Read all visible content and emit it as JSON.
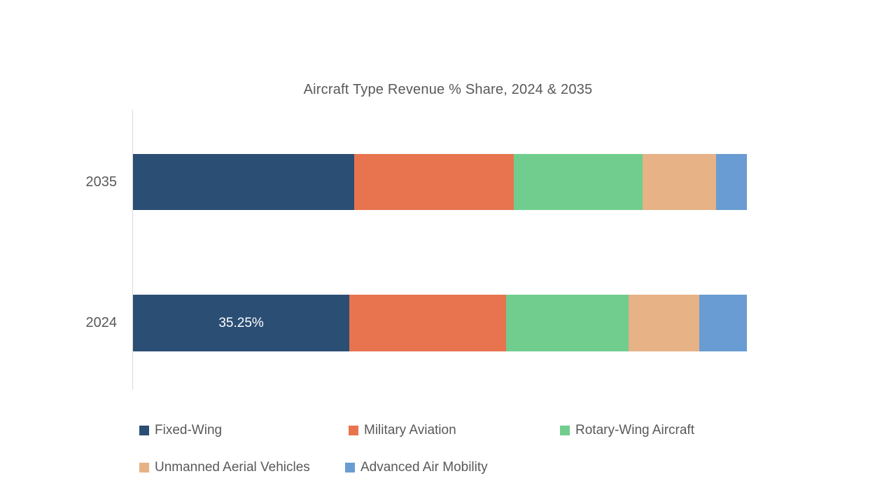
{
  "chart_data": {
    "type": "bar",
    "orientation": "horizontal",
    "stacked": true,
    "title": "Aircraft Type Revenue % Share, 2024 & 2035",
    "categories": [
      "2035",
      "2024"
    ],
    "series": [
      {
        "name": "Fixed-Wing",
        "color": "#2B4E74",
        "values": [
          36,
          35.25
        ]
      },
      {
        "name": "Military Aviation",
        "color": "#E7744E",
        "values": [
          26,
          25.5
        ]
      },
      {
        "name": "Rotary-Wing Aircraft",
        "color": "#70CD8E",
        "values": [
          21,
          20
        ]
      },
      {
        "name": "Unmanned Aerial Vehicles",
        "color": "#E6B286",
        "values": [
          12,
          11.5
        ]
      },
      {
        "name": "Advanced Air Mobility",
        "color": "#689CD2",
        "values": [
          5,
          7.75
        ]
      }
    ],
    "xlim": [
      0,
      100
    ],
    "value_units": "percent",
    "data_labels": [
      {
        "category_index": 1,
        "series_index": 0,
        "text": "35.25%"
      }
    ],
    "legend_position": "bottom",
    "grid": false
  },
  "legend": {
    "rows": [
      [
        0,
        1,
        2
      ],
      [
        3,
        4
      ]
    ]
  },
  "style": {
    "background": "#FFFFFF",
    "title_color": "#595959",
    "label_color": "#595959",
    "axis_line_color": "#D9D9D9",
    "data_label_color": "#FFFFFF"
  }
}
